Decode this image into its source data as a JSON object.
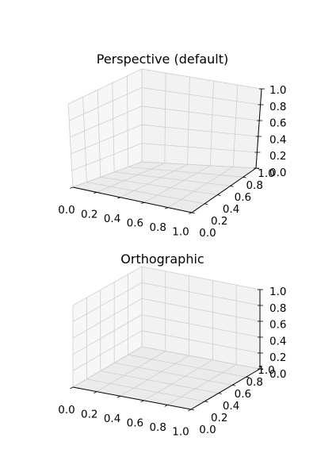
{
  "chart_data": [
    {
      "type": "3d-axes",
      "title": "Perspective (default)",
      "projection": "perspective",
      "xlim": [
        0,
        1
      ],
      "ylim": [
        0,
        1
      ],
      "zlim": [
        0,
        1
      ],
      "x_ticks": [
        "0.0",
        "0.2",
        "0.4",
        "0.6",
        "0.8",
        "1.0"
      ],
      "y_ticks": [
        "0.0",
        "0.2",
        "0.4",
        "0.6",
        "0.8",
        "1.0"
      ],
      "z_ticks": [
        "0.0",
        "0.2",
        "0.4",
        "0.6",
        "0.8",
        "1.0"
      ],
      "grid": true,
      "pane_colors": [
        "#f2f2f2",
        "#ebebeb",
        "#f7f7f7"
      ]
    },
    {
      "type": "3d-axes",
      "title": "Orthographic",
      "projection": "orthographic",
      "xlim": [
        0,
        1
      ],
      "ylim": [
        0,
        1
      ],
      "zlim": [
        0,
        1
      ],
      "x_ticks": [
        "0.0",
        "0.2",
        "0.4",
        "0.6",
        "0.8",
        "1.0"
      ],
      "y_ticks": [
        "0.0",
        "0.2",
        "0.4",
        "0.6",
        "0.8",
        "1.0"
      ],
      "z_ticks": [
        "0.0",
        "0.2",
        "0.4",
        "0.6",
        "0.8",
        "1.0"
      ],
      "grid": true,
      "pane_colors": [
        "#f2f2f2",
        "#ebebeb",
        "#f7f7f7"
      ]
    }
  ]
}
